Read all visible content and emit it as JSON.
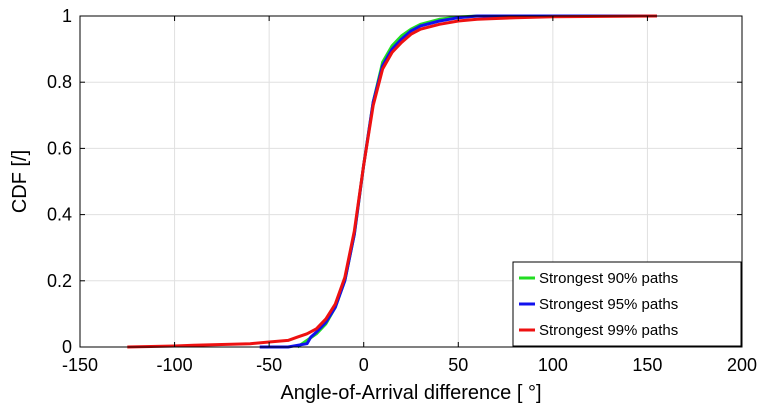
{
  "chart_data": {
    "type": "line",
    "xlabel": "Angle-of-Arrival difference [ °]",
    "ylabel": "CDF [/]",
    "xlim": [
      -150,
      200
    ],
    "ylim": [
      0,
      1
    ],
    "xticks": [
      -150,
      -100,
      -50,
      0,
      50,
      100,
      150,
      200
    ],
    "yticks": [
      0,
      0.2,
      0.4,
      0.6,
      0.8,
      1
    ],
    "xtick_labels": [
      "-150",
      "-100",
      "-50",
      "0",
      "50",
      "100",
      "150",
      "200"
    ],
    "ytick_labels": [
      "0",
      "0.2",
      "0.4",
      "0.6",
      "0.8",
      "1"
    ],
    "grid": true,
    "legend_position": "bottom-right",
    "series": [
      {
        "name": "Strongest 90% paths",
        "color": "#22dd22",
        "x": [
          -35,
          -30,
          -25,
          -20,
          -15,
          -10,
          -5,
          0,
          5,
          10,
          15,
          20,
          25,
          30,
          40,
          50,
          60,
          80,
          100,
          155
        ],
        "y": [
          0,
          0.02,
          0.04,
          0.07,
          0.12,
          0.2,
          0.34,
          0.55,
          0.74,
          0.86,
          0.91,
          0.94,
          0.96,
          0.975,
          0.99,
          0.997,
          1.0,
          1.0,
          1.0,
          1.0
        ]
      },
      {
        "name": "Strongest 95% paths",
        "color": "#1111ee",
        "x": [
          -55,
          -40,
          -35,
          -30,
          -28,
          -25,
          -20,
          -15,
          -10,
          -5,
          0,
          5,
          10,
          15,
          20,
          25,
          30,
          40,
          50,
          60,
          80,
          100,
          155
        ],
        "y": [
          0,
          0.0,
          0.005,
          0.01,
          0.03,
          0.045,
          0.075,
          0.12,
          0.2,
          0.34,
          0.55,
          0.74,
          0.85,
          0.9,
          0.93,
          0.955,
          0.97,
          0.985,
          0.995,
          1.0,
          1.0,
          1.0,
          1.0
        ]
      },
      {
        "name": "Strongest 99% paths",
        "color": "#ee1111",
        "x": [
          -125,
          -100,
          -90,
          -80,
          -60,
          -50,
          -40,
          -35,
          -30,
          -25,
          -20,
          -15,
          -10,
          -5,
          0,
          5,
          10,
          15,
          20,
          25,
          30,
          40,
          50,
          60,
          80,
          100,
          155
        ],
        "y": [
          0,
          0.003,
          0.005,
          0.007,
          0.01,
          0.015,
          0.02,
          0.03,
          0.04,
          0.055,
          0.085,
          0.13,
          0.21,
          0.35,
          0.55,
          0.73,
          0.84,
          0.89,
          0.92,
          0.945,
          0.96,
          0.975,
          0.985,
          0.99,
          0.995,
          0.998,
          1.0
        ]
      }
    ]
  }
}
